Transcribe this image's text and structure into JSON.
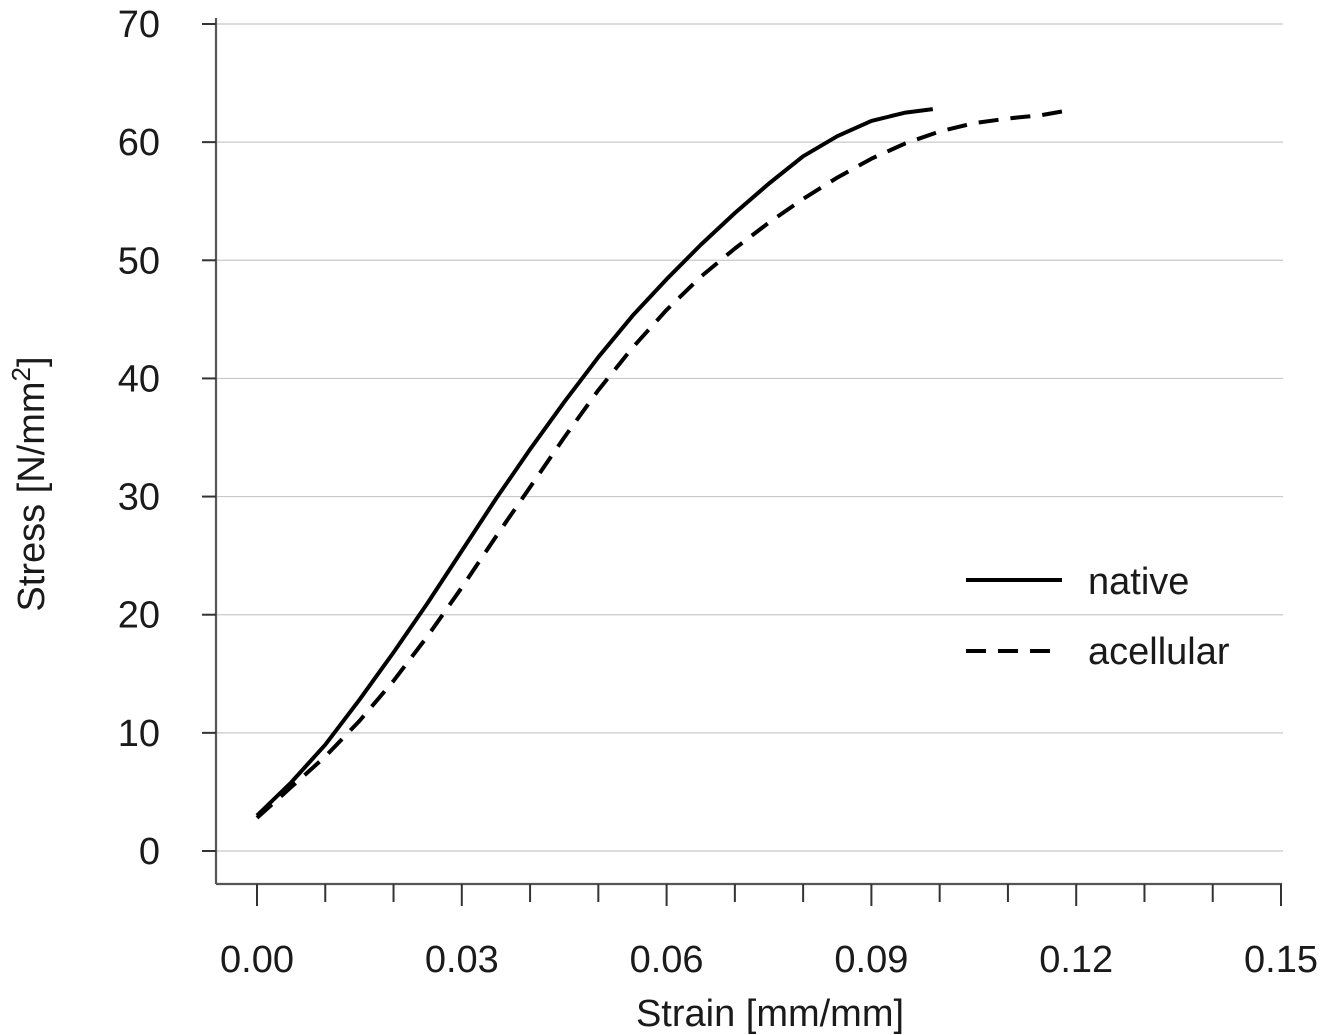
{
  "chart_data": {
    "type": "line",
    "title": "",
    "xlabel": "Strain [mm/mm]",
    "ylabel": "Stress [N/mm",
    "ylabel_superscript": "2",
    "ylabel_suffix": "]",
    "xlim": [
      0,
      0.15
    ],
    "ylim": [
      0,
      70
    ],
    "x_ticks": [
      0.0,
      0.03,
      0.06,
      0.09,
      0.12,
      0.15
    ],
    "x_tick_labels": [
      "0.00",
      "0.03",
      "0.06",
      "0.09",
      "0.12",
      "0.15"
    ],
    "x_minor_ticks": [
      0.01,
      0.02,
      0.04,
      0.05,
      0.07,
      0.08,
      0.1,
      0.11,
      0.13,
      0.14
    ],
    "y_ticks": [
      0,
      10,
      20,
      30,
      40,
      50,
      60,
      70
    ],
    "y_tick_labels": [
      "0",
      "10",
      "20",
      "30",
      "40",
      "50",
      "60",
      "70"
    ],
    "grid": "horizontal",
    "legend": "right",
    "series": [
      {
        "name": "native",
        "style": "solid",
        "color": "#000000",
        "x": [
          0.0,
          0.005,
          0.01,
          0.015,
          0.02,
          0.025,
          0.03,
          0.035,
          0.04,
          0.045,
          0.05,
          0.055,
          0.06,
          0.065,
          0.07,
          0.075,
          0.08,
          0.085,
          0.09,
          0.095,
          0.099
        ],
        "y": [
          3.0,
          5.8,
          9.0,
          12.8,
          16.8,
          21.0,
          25.4,
          29.8,
          34.0,
          38.0,
          41.8,
          45.3,
          48.4,
          51.3,
          54.0,
          56.5,
          58.8,
          60.5,
          61.8,
          62.5,
          62.8
        ]
      },
      {
        "name": "acellular",
        "style": "dashed",
        "color": "#000000",
        "x": [
          0.0,
          0.005,
          0.01,
          0.015,
          0.02,
          0.025,
          0.03,
          0.035,
          0.04,
          0.045,
          0.05,
          0.055,
          0.06,
          0.065,
          0.07,
          0.075,
          0.08,
          0.085,
          0.09,
          0.095,
          0.1,
          0.105,
          0.11,
          0.115,
          0.118
        ],
        "y": [
          2.8,
          5.4,
          8.0,
          11.0,
          14.4,
          18.2,
          22.3,
          26.6,
          30.8,
          35.0,
          39.0,
          42.6,
          45.8,
          48.6,
          51.0,
          53.2,
          55.2,
          57.0,
          58.6,
          59.9,
          60.9,
          61.6,
          62.0,
          62.3,
          62.6
        ]
      }
    ]
  }
}
